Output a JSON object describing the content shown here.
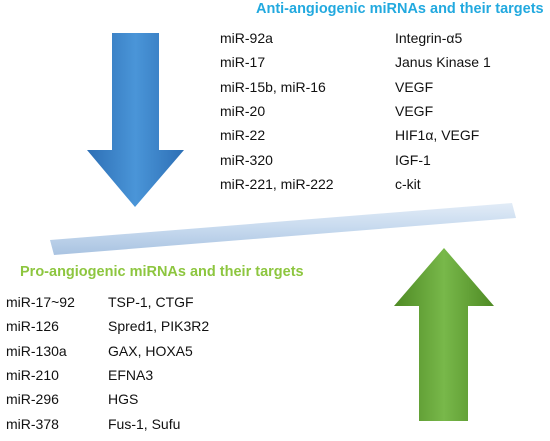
{
  "anti_angiogenic": {
    "title": "Anti-angiogenic miRNAs and their targets",
    "arrow_color": "#3a82c8",
    "rows": [
      {
        "mirna": "miR-92a",
        "target": "Integrin-α5"
      },
      {
        "mirna": "miR-17",
        "target": "Janus Kinase 1"
      },
      {
        "mirna": "miR-15b, miR-16",
        "target": "VEGF"
      },
      {
        "mirna": "miR-20",
        "target": "VEGF"
      },
      {
        "mirna": "miR-22",
        "target": "HIF1α, VEGF"
      },
      {
        "mirna": "miR-320",
        "target": "IGF-1"
      },
      {
        "mirna": "miR-221, miR-222",
        "target": "c-kit"
      }
    ]
  },
  "pro_angiogenic": {
    "title": "Pro-angiogenic miRNAs and their targets",
    "arrow_color": "#5e9e2e",
    "rows": [
      {
        "mirna": "miR-17~92",
        "target": "TSP-1, CTGF"
      },
      {
        "mirna": "miR-126",
        "target": "Spred1, PIK3R2"
      },
      {
        "mirna": "miR-130a",
        "target": "GAX, HOXA5"
      },
      {
        "mirna": "miR-210",
        "target": "EFNA3"
      },
      {
        "mirna": "miR-296",
        "target": "HGS"
      },
      {
        "mirna": "miR-378",
        "target": "Fus-1, Sufu"
      }
    ]
  },
  "balance_beam_color": "#c6d9ee"
}
